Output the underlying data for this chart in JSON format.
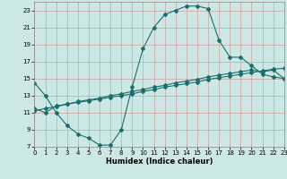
{
  "xlabel": "Humidex (Indice chaleur)",
  "bg_color": "#cce8e4",
  "grid_color": "#d4a0a0",
  "line_color": "#1a6e6e",
  "xlim": [
    0,
    23
  ],
  "ylim": [
    7,
    24
  ],
  "yticks": [
    7,
    9,
    11,
    13,
    15,
    17,
    19,
    21,
    23
  ],
  "xticks": [
    0,
    1,
    2,
    3,
    4,
    5,
    6,
    7,
    8,
    9,
    10,
    11,
    12,
    13,
    14,
    15,
    16,
    17,
    18,
    19,
    20,
    21,
    22,
    23
  ],
  "line1_x": [
    0,
    1,
    2,
    3,
    4,
    5,
    6,
    7,
    8,
    9,
    10,
    11,
    12,
    13,
    14,
    15,
    16,
    17,
    18,
    19,
    20,
    21,
    22,
    23
  ],
  "line1_y": [
    14.5,
    13.0,
    11.0,
    9.5,
    8.5,
    8.0,
    7.2,
    7.2,
    9.0,
    14.0,
    18.5,
    21.0,
    22.5,
    23.0,
    23.5,
    23.5,
    23.2,
    19.5,
    17.5,
    17.5,
    16.5,
    15.5,
    15.2,
    15.0
  ],
  "line2_x": [
    0,
    1,
    2,
    3,
    4,
    5,
    6,
    7,
    8,
    9,
    10,
    11,
    12,
    13,
    14,
    15,
    16,
    17,
    18,
    19,
    20,
    21,
    22,
    23
  ],
  "line2_y": [
    11.5,
    11.0,
    11.8,
    12.0,
    12.3,
    12.5,
    12.7,
    13.0,
    13.2,
    13.5,
    13.7,
    14.0,
    14.2,
    14.5,
    14.7,
    14.9,
    15.2,
    15.4,
    15.6,
    15.8,
    16.0,
    15.8,
    16.0,
    15.0
  ],
  "line3_x": [
    0,
    1,
    2,
    3,
    4,
    5,
    6,
    7,
    8,
    9,
    10,
    11,
    12,
    13,
    14,
    15,
    16,
    17,
    18,
    19,
    20,
    21,
    22,
    23
  ],
  "line3_y": [
    11.2,
    11.5,
    11.7,
    12.0,
    12.2,
    12.4,
    12.6,
    12.8,
    13.0,
    13.2,
    13.5,
    13.7,
    14.0,
    14.2,
    14.4,
    14.6,
    14.9,
    15.1,
    15.3,
    15.5,
    15.7,
    15.9,
    16.1,
    16.2
  ]
}
